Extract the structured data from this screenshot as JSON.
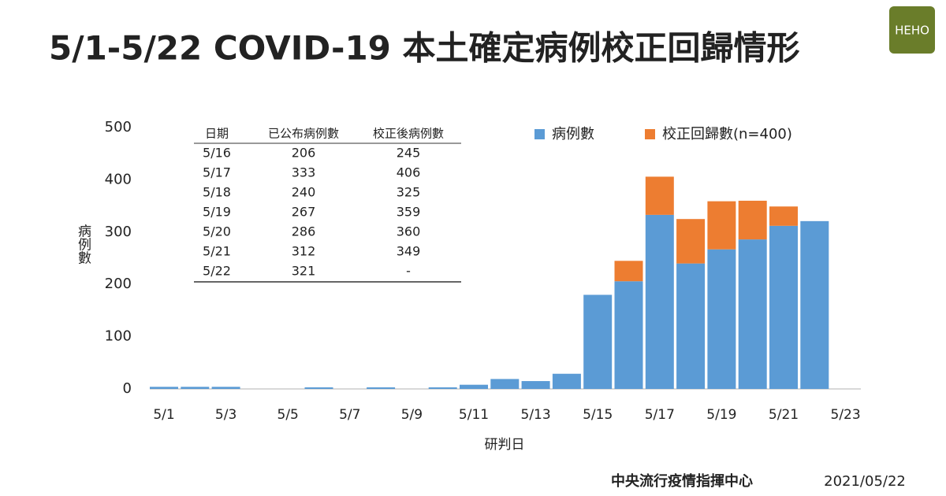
{
  "chart_data": {
    "type": "bar",
    "title": "5/1-5/22 COVID-19 本土確定病例校正回歸情形",
    "y_label": "病例數",
    "x_label": "研判日",
    "categories": [
      "5/1",
      null,
      "5/3",
      null,
      "5/5",
      null,
      "5/7",
      null,
      "5/9",
      null,
      "5/11",
      null,
      "5/13",
      null,
      "5/15",
      null,
      "5/17",
      null,
      "5/19",
      null,
      "5/21",
      null,
      "5/23"
    ],
    "series": [
      {
        "name": "病例數",
        "color": "#5b9bd5",
        "values": [
          4,
          4,
          4,
          0,
          0,
          3,
          0,
          3,
          0,
          3,
          8,
          19,
          15,
          29,
          180,
          206,
          333,
          240,
          267,
          286,
          312,
          321,
          null
        ]
      },
      {
        "name": "校正回歸數(n=400)",
        "color": "#ed7d31",
        "values": [
          null,
          null,
          null,
          null,
          null,
          null,
          null,
          null,
          null,
          null,
          null,
          null,
          null,
          null,
          null,
          39,
          73,
          85,
          92,
          74,
          37,
          null,
          null
        ]
      }
    ],
    "stacked": true,
    "ylim": [
      0,
      500
    ],
    "yticks": [
      0,
      100,
      200,
      300,
      400,
      500
    ],
    "grid": false,
    "legend": "top-right"
  },
  "table": {
    "header": [
      "日期",
      "已公布病例數",
      "校正後病例數"
    ],
    "rows": [
      [
        "5/16",
        206,
        245
      ],
      [
        "5/17",
        333,
        406
      ],
      [
        "5/18",
        240,
        325
      ],
      [
        "5/19",
        267,
        359
      ],
      [
        "5/20",
        286,
        360
      ],
      [
        "5/21",
        312,
        349
      ],
      [
        "5/22",
        321,
        "-"
      ]
    ]
  },
  "footer": {
    "source": "中央流行疫情指揮中心",
    "date": "2021/05/22"
  },
  "logo": "HEHO"
}
